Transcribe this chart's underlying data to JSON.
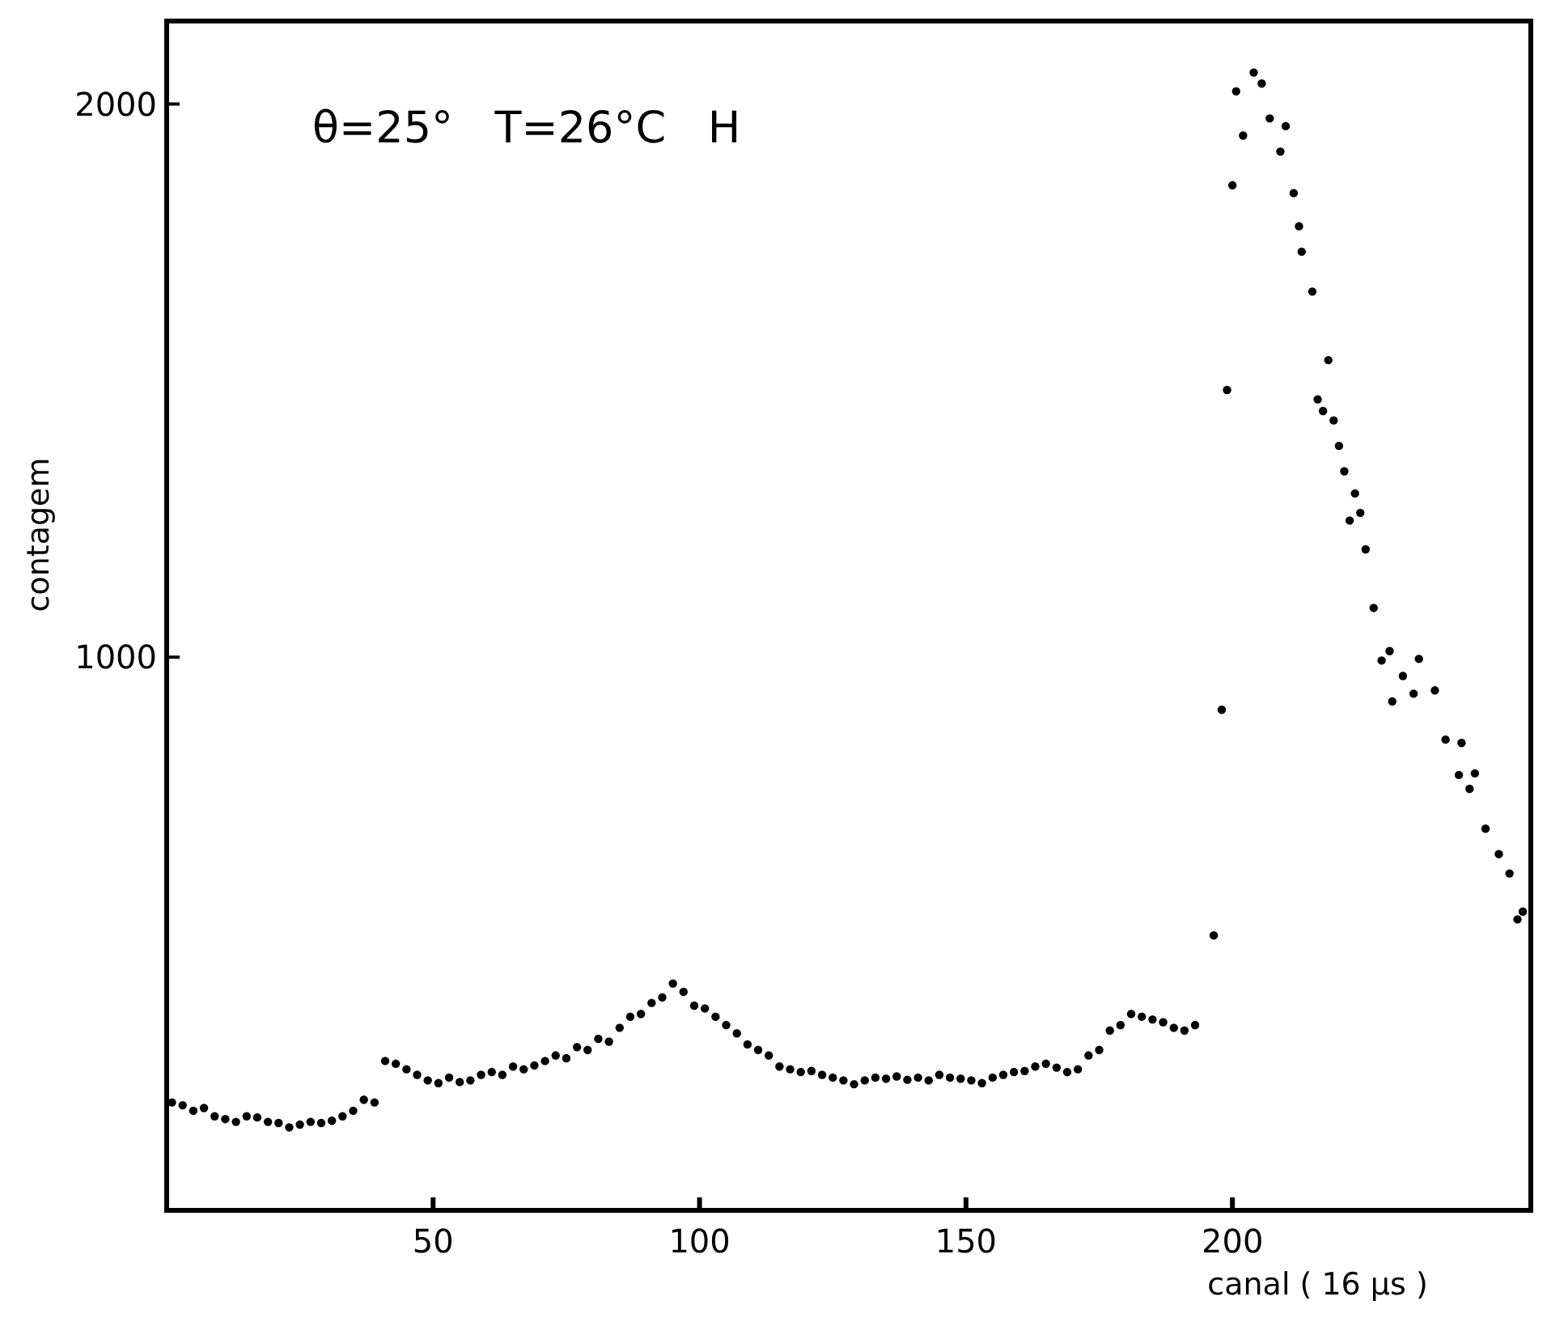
{
  "chart_data": {
    "type": "scatter",
    "xlabel": "canal ( 16 μs )",
    "ylabel": "contagem",
    "annotations": [
      "θ=25°   T=26°C   H"
    ],
    "xlim": [
      0,
      256
    ],
    "ylim": [
      0,
      2150
    ],
    "xticks": [
      50,
      100,
      150,
      200
    ],
    "yticks": [
      1000,
      2000
    ],
    "marker": "circle",
    "series": [
      {
        "color": "#000000",
        "x": [
          1,
          3,
          5,
          7,
          9,
          11,
          13,
          15,
          17,
          19,
          21,
          23,
          25,
          27,
          29,
          31,
          33,
          35,
          37,
          39,
          41,
          43,
          45,
          47,
          49,
          51,
          53,
          55,
          57,
          59,
          61,
          63,
          65,
          67,
          69,
          71,
          73,
          75,
          77,
          79,
          81,
          83,
          85,
          87,
          89,
          91,
          93,
          95,
          97,
          99,
          101,
          103,
          105,
          107,
          109,
          111,
          113,
          115,
          117,
          119,
          121,
          123,
          125,
          127,
          129,
          131,
          133,
          135,
          137,
          139,
          141,
          143,
          145,
          147,
          149,
          151,
          153,
          155,
          157,
          159,
          161,
          163,
          165,
          167,
          169,
          171,
          173,
          175,
          177,
          179,
          181,
          183,
          185,
          187,
          189,
          191,
          193,
          196.5,
          198,
          199,
          200,
          200.7,
          202,
          204,
          205.5,
          207,
          209,
          210,
          211.5,
          212.5,
          213,
          215,
          216,
          217,
          218,
          219,
          220,
          221,
          222,
          223,
          224,
          225,
          226.5,
          228,
          229.5,
          230,
          232,
          234,
          235,
          238,
          240,
          242.5,
          243,
          244.5,
          245.5,
          247.5,
          250,
          252,
          253.5,
          254.5
        ],
        "values": [
          195,
          190,
          180,
          185,
          170,
          165,
          160,
          170,
          168,
          160,
          158,
          150,
          155,
          160,
          158,
          162,
          170,
          180,
          200,
          195,
          270,
          265,
          255,
          245,
          235,
          230,
          240,
          232,
          235,
          245,
          250,
          245,
          260,
          255,
          262,
          270,
          280,
          275,
          295,
          290,
          310,
          305,
          330,
          350,
          355,
          375,
          385,
          410,
          395,
          370,
          365,
          350,
          335,
          320,
          300,
          290,
          280,
          260,
          255,
          250,
          252,
          245,
          240,
          235,
          228,
          235,
          240,
          238,
          242,
          236,
          240,
          235,
          245,
          240,
          238,
          235,
          230,
          240,
          245,
          250,
          252,
          260,
          265,
          258,
          250,
          255,
          280,
          290,
          325,
          335,
          355,
          350,
          345,
          340,
          330,
          325,
          335,
          497,
          905,
          1483,
          1853,
          2023,
          1943,
          2057,
          2037,
          1974,
          1914,
          1960,
          1839,
          1779,
          1733,
          1661,
          1466,
          1445,
          1537,
          1428,
          1382,
          1336,
          1247,
          1296,
          1261,
          1195,
          1089,
          994,
          1011,
          920,
          966,
          934,
          997,
          940,
          851,
          787,
          845,
          762,
          790,
          690,
          644,
          609,
          526,
          540
        ]
      }
    ]
  }
}
